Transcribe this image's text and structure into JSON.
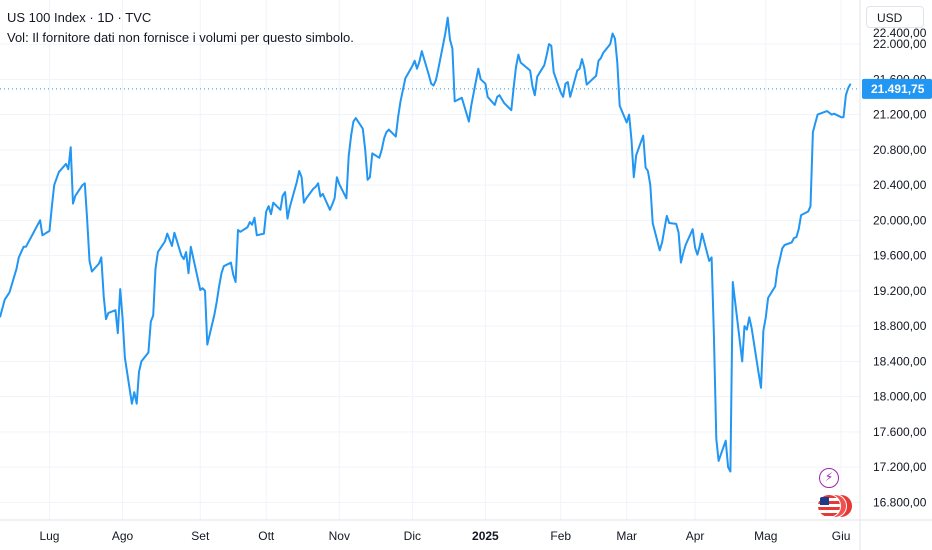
{
  "legend": {
    "title": "US 100 Index · 1D · TVC",
    "volume_note": "Vol: Il fornitore dati non fornisce i volumi per questo simbolo."
  },
  "currency": "USD",
  "last_price_label": "21.491,75",
  "colors": {
    "line": "#2196f3",
    "price_badge": "#2196f3",
    "grid": "#f0f3fa",
    "axis_text": "#131722",
    "event_icon": "#9c27b0",
    "flag_red": "#e53935"
  },
  "icons": [
    "lightning-event-icon",
    "us-flag-events-icon"
  ],
  "chart_data": {
    "type": "line",
    "title": "US 100 Index",
    "xlabel": "",
    "ylabel": "",
    "ylim": [
      16600,
      22500
    ],
    "y_ticks": [
      16800,
      17200,
      17600,
      18000,
      18400,
      18800,
      19200,
      19600,
      20000,
      20400,
      20800,
      21200,
      21600,
      22000
    ],
    "y_tick_labels": [
      "16.800,00",
      "17.200,00",
      "17.600,00",
      "18.000,00",
      "18.400,00",
      "18.800,00",
      "19.200,00",
      "19.600,00",
      "20.000,00",
      "20.400,00",
      "20.800,00",
      "21.200,00",
      "21.600,00",
      "22.000,00"
    ],
    "y_top_partial_label": "22.400,00",
    "x_tick_labels": [
      "Lug",
      "Ago",
      "Set",
      "Ott",
      "Nov",
      "Dic",
      "2025",
      "Feb",
      "Mar",
      "Apr",
      "Mag",
      "Giu"
    ],
    "x_tick_dates": [
      "2024-07-01",
      "2024-08-01",
      "2024-09-03",
      "2024-10-01",
      "2024-11-01",
      "2024-12-02",
      "2025-01-02",
      "2025-02-03",
      "2025-03-03",
      "2025-04-01",
      "2025-05-01",
      "2025-06-02"
    ],
    "x_range": [
      "2024-06-10",
      "2025-06-10"
    ],
    "grid": true,
    "last_value": 21491.75,
    "series": [
      {
        "name": "US 100 Index",
        "x": [
          "2024-06-10",
          "2024-06-12",
          "2024-06-14",
          "2024-06-17",
          "2024-06-18",
          "2024-06-20",
          "2024-06-21",
          "2024-06-24",
          "2024-06-25",
          "2024-06-26",
          "2024-06-27",
          "2024-06-28",
          "2024-07-01",
          "2024-07-02",
          "2024-07-03",
          "2024-07-05",
          "2024-07-08",
          "2024-07-09",
          "2024-07-10",
          "2024-07-11",
          "2024-07-12",
          "2024-07-15",
          "2024-07-16",
          "2024-07-17",
          "2024-07-18",
          "2024-07-19",
          "2024-07-22",
          "2024-07-23",
          "2024-07-24",
          "2024-07-25",
          "2024-07-26",
          "2024-07-29",
          "2024-07-30",
          "2024-07-31",
          "2024-08-01",
          "2024-08-02",
          "2024-08-05",
          "2024-08-06",
          "2024-08-07",
          "2024-08-08",
          "2024-08-09",
          "2024-08-12",
          "2024-08-13",
          "2024-08-14",
          "2024-08-15",
          "2024-08-16",
          "2024-08-19",
          "2024-08-20",
          "2024-08-21",
          "2024-08-22",
          "2024-08-23",
          "2024-08-26",
          "2024-08-27",
          "2024-08-28",
          "2024-08-29",
          "2024-08-30",
          "2024-09-03",
          "2024-09-04",
          "2024-09-05",
          "2024-09-06",
          "2024-09-09",
          "2024-09-10",
          "2024-09-11",
          "2024-09-12",
          "2024-09-13",
          "2024-09-16",
          "2024-09-17",
          "2024-09-18",
          "2024-09-19",
          "2024-09-20",
          "2024-09-23",
          "2024-09-24",
          "2024-09-25",
          "2024-09-26",
          "2024-09-27",
          "2024-09-30",
          "2024-10-01",
          "2024-10-02",
          "2024-10-03",
          "2024-10-04",
          "2024-10-07",
          "2024-10-08",
          "2024-10-09",
          "2024-10-10",
          "2024-10-11",
          "2024-10-14",
          "2024-10-15",
          "2024-10-16",
          "2024-10-17",
          "2024-10-18",
          "2024-10-21",
          "2024-10-22",
          "2024-10-23",
          "2024-10-24",
          "2024-10-25",
          "2024-10-28",
          "2024-10-29",
          "2024-10-30",
          "2024-10-31",
          "2024-11-01",
          "2024-11-04",
          "2024-11-05",
          "2024-11-06",
          "2024-11-07",
          "2024-11-08",
          "2024-11-11",
          "2024-11-12",
          "2024-11-13",
          "2024-11-14",
          "2024-11-15",
          "2024-11-18",
          "2024-11-19",
          "2024-11-20",
          "2024-11-21",
          "2024-11-22",
          "2024-11-25",
          "2024-11-26",
          "2024-11-27",
          "2024-11-29",
          "2024-12-02",
          "2024-12-03",
          "2024-12-04",
          "2024-12-05",
          "2024-12-06",
          "2024-12-09",
          "2024-12-10",
          "2024-12-11",
          "2024-12-12",
          "2024-12-13",
          "2024-12-16",
          "2024-12-17",
          "2024-12-18",
          "2024-12-19",
          "2024-12-20",
          "2024-12-23",
          "2024-12-24",
          "2024-12-26",
          "2024-12-27",
          "2024-12-30",
          "2024-12-31",
          "2025-01-02",
          "2025-01-03",
          "2025-01-06",
          "2025-01-07",
          "2025-01-08",
          "2025-01-10",
          "2025-01-13",
          "2025-01-14",
          "2025-01-15",
          "2025-01-16",
          "2025-01-17",
          "2025-01-21",
          "2025-01-22",
          "2025-01-23",
          "2025-01-24",
          "2025-01-27",
          "2025-01-28",
          "2025-01-29",
          "2025-01-30",
          "2025-01-31",
          "2025-02-03",
          "2025-02-04",
          "2025-02-05",
          "2025-02-06",
          "2025-02-07",
          "2025-02-10",
          "2025-02-11",
          "2025-02-12",
          "2025-02-13",
          "2025-02-14",
          "2025-02-18",
          "2025-02-19",
          "2025-02-20",
          "2025-02-21",
          "2025-02-24",
          "2025-02-25",
          "2025-02-26",
          "2025-02-27",
          "2025-02-28",
          "2025-03-03",
          "2025-03-04",
          "2025-03-05",
          "2025-03-06",
          "2025-03-07",
          "2025-03-10",
          "2025-03-11",
          "2025-03-12",
          "2025-03-13",
          "2025-03-14",
          "2025-03-17",
          "2025-03-18",
          "2025-03-19",
          "2025-03-20",
          "2025-03-21",
          "2025-03-24",
          "2025-03-25",
          "2025-03-26",
          "2025-03-27",
          "2025-03-28",
          "2025-03-31",
          "2025-04-01",
          "2025-04-02",
          "2025-04-03",
          "2025-04-04",
          "2025-04-07",
          "2025-04-08",
          "2025-04-09",
          "2025-04-10",
          "2025-04-11",
          "2025-04-14",
          "2025-04-15",
          "2025-04-16",
          "2025-04-17",
          "2025-04-21",
          "2025-04-22",
          "2025-04-23",
          "2025-04-24",
          "2025-04-25",
          "2025-04-28",
          "2025-04-29",
          "2025-04-30",
          "2025-05-01",
          "2025-05-02",
          "2025-05-05",
          "2025-05-06",
          "2025-05-07",
          "2025-05-08",
          "2025-05-09",
          "2025-05-12",
          "2025-05-13",
          "2025-05-14",
          "2025-05-15",
          "2025-05-16",
          "2025-05-19",
          "2025-05-20",
          "2025-05-21",
          "2025-05-22",
          "2025-05-23",
          "2025-05-27",
          "2025-05-28",
          "2025-05-29",
          "2025-05-30",
          "2025-06-02",
          "2025-06-03",
          "2025-06-04",
          "2025-06-05",
          "2025-06-06"
        ],
        "values": [
          18900,
          19100,
          19180,
          19450,
          19580,
          19700,
          19700,
          19850,
          19900,
          19950,
          20000,
          19830,
          19880,
          20150,
          20400,
          20550,
          20640,
          20580,
          20830,
          20190,
          20280,
          20400,
          20420,
          20000,
          19540,
          19420,
          19510,
          19580,
          19140,
          18880,
          18950,
          18980,
          18720,
          19220,
          18900,
          18440,
          17920,
          18050,
          17920,
          18280,
          18400,
          18500,
          18850,
          18920,
          19450,
          19640,
          19760,
          19850,
          19780,
          19710,
          19860,
          19600,
          19560,
          19640,
          19400,
          19700,
          19210,
          19230,
          19200,
          18590,
          18930,
          19080,
          19250,
          19400,
          19480,
          19520,
          19380,
          19300,
          19890,
          19870,
          19920,
          19980,
          19950,
          20030,
          19830,
          19850,
          20100,
          20160,
          20070,
          20200,
          20120,
          20280,
          20320,
          20020,
          20150,
          20440,
          20560,
          20490,
          20200,
          20250,
          20360,
          20380,
          20420,
          20270,
          20300,
          20120,
          20180,
          20250,
          20490,
          20410,
          20250,
          20730,
          20960,
          21120,
          21160,
          21040,
          20800,
          20460,
          20490,
          20760,
          20710,
          20800,
          20930,
          21000,
          21030,
          20950,
          21180,
          21350,
          21610,
          21750,
          21810,
          21720,
          21800,
          21920,
          21650,
          21550,
          21530,
          21590,
          21710,
          22120,
          22300,
          22050,
          21950,
          21350,
          21390,
          21300,
          21120,
          21300,
          21720,
          21600,
          21550,
          21400,
          21310,
          21400,
          21420,
          21330,
          21250,
          21500,
          21740,
          21880,
          21790,
          21700,
          21520,
          21420,
          21630,
          21760,
          21870,
          22000,
          21980,
          21680,
          21450,
          21400,
          21550,
          21570,
          21400,
          21700,
          21720,
          21830,
          21730,
          21540,
          21640,
          21810,
          21840,
          21900,
          22000,
          22120,
          22060,
          21790,
          21300,
          21110,
          21200,
          20910,
          20490,
          20740,
          20960,
          20600,
          20560,
          20400,
          19970,
          19660,
          19750,
          19900,
          20050,
          19970,
          19960,
          19860,
          19520,
          19630,
          19720,
          19900,
          19690,
          19610,
          19710,
          19850,
          19540,
          19580,
          18700,
          17520,
          17270,
          17500,
          17200,
          17150,
          19300,
          18400,
          18800,
          18760,
          18900,
          18780,
          18260,
          18100,
          18750,
          18900,
          19120,
          19250,
          19450,
          19560,
          19680,
          19720,
          19750,
          19800,
          19810,
          19900,
          20060,
          20100,
          20160,
          21000,
          21100,
          21200,
          21240,
          21220,
          21200,
          21210,
          21170,
          21170,
          21420,
          21500,
          21550
        ]
      }
    ]
  }
}
